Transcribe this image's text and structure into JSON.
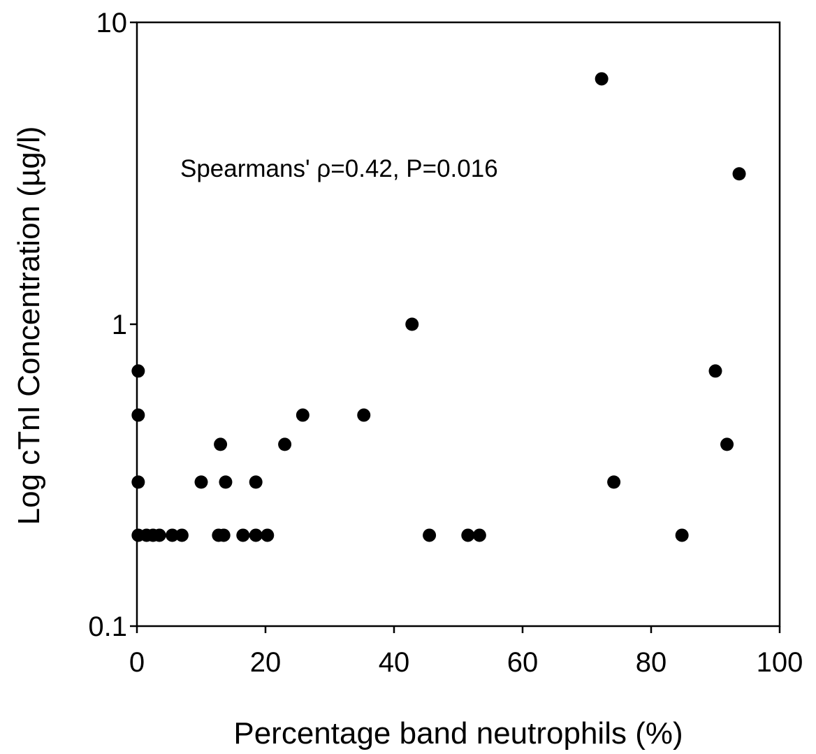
{
  "chart_data": {
    "type": "scatter",
    "xlabel": "Percentage band neutrophils (%)",
    "ylabel": "Log cTnI Concentration (µg/l)",
    "annotation": "Spearmans' ρ=0.42, P=0.016",
    "xlim": [
      0,
      100
    ],
    "ylim": [
      0.1,
      10
    ],
    "y_scale": "log",
    "grid": false,
    "x_ticks": [
      0,
      20,
      40,
      60,
      80,
      100
    ],
    "x_tick_labels": [
      "0",
      "20",
      "40",
      "60",
      "80",
      "100"
    ],
    "y_ticks": [
      0.1,
      1,
      10
    ],
    "y_tick_labels": [
      "0.1",
      "1",
      "10"
    ],
    "marker_color": "#000000",
    "points": [
      {
        "x": 0.2,
        "y": 0.7
      },
      {
        "x": 0.2,
        "y": 0.5
      },
      {
        "x": 0.2,
        "y": 0.3
      },
      {
        "x": 0.2,
        "y": 0.2
      },
      {
        "x": 1.5,
        "y": 0.2
      },
      {
        "x": 2.5,
        "y": 0.2
      },
      {
        "x": 3.5,
        "y": 0.2
      },
      {
        "x": 5.5,
        "y": 0.2
      },
      {
        "x": 7.0,
        "y": 0.2
      },
      {
        "x": 10.0,
        "y": 0.3
      },
      {
        "x": 12.7,
        "y": 0.2
      },
      {
        "x": 13.5,
        "y": 0.2
      },
      {
        "x": 13.0,
        "y": 0.4
      },
      {
        "x": 13.8,
        "y": 0.3
      },
      {
        "x": 16.5,
        "y": 0.2
      },
      {
        "x": 18.5,
        "y": 0.3
      },
      {
        "x": 18.5,
        "y": 0.2
      },
      {
        "x": 20.3,
        "y": 0.2
      },
      {
        "x": 23.0,
        "y": 0.4
      },
      {
        "x": 25.8,
        "y": 0.5
      },
      {
        "x": 35.3,
        "y": 0.5
      },
      {
        "x": 42.8,
        "y": 1.0
      },
      {
        "x": 45.5,
        "y": 0.2
      },
      {
        "x": 51.5,
        "y": 0.2
      },
      {
        "x": 53.3,
        "y": 0.2
      },
      {
        "x": 72.3,
        "y": 6.5
      },
      {
        "x": 74.2,
        "y": 0.3
      },
      {
        "x": 84.8,
        "y": 0.2
      },
      {
        "x": 90.0,
        "y": 0.7
      },
      {
        "x": 91.8,
        "y": 0.4
      },
      {
        "x": 93.7,
        "y": 3.15
      }
    ]
  }
}
